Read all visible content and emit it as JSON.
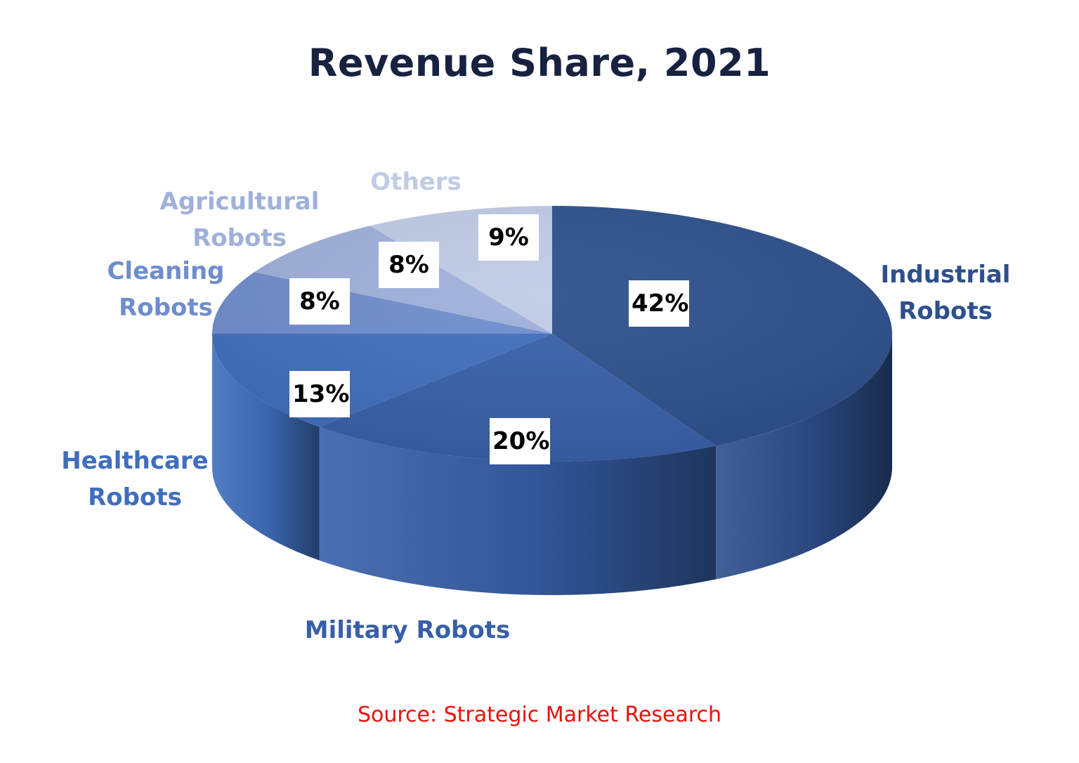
{
  "chart_data": {
    "type": "pie",
    "title": "Revenue Share, 2021",
    "categories": [
      "Industrial Robots",
      "Military Robots",
      "Healthcare Robots",
      "Cleaning Robots",
      "Agricultural Robots",
      "Others"
    ],
    "values": [
      42,
      20,
      13,
      8,
      8,
      9
    ],
    "value_labels": [
      "42%",
      "20%",
      "13%",
      "8%",
      "8%",
      "9%"
    ],
    "category_label_lines": [
      [
        "Industrial",
        "Robots"
      ],
      [
        "Military Robots"
      ],
      [
        "Healthcare",
        "Robots"
      ],
      [
        "Cleaning",
        "Robots"
      ],
      [
        "Agricultural",
        "Robots"
      ],
      [
        "Others"
      ]
    ],
    "colors": [
      "#2d4f8c",
      "#375fa9",
      "#3f6ebe",
      "#6f8dcd",
      "#9fb0db",
      "#c0cbe6"
    ],
    "label_colors": [
      "#2d4f8c",
      "#375fa9",
      "#3f6ebe",
      "#6f8dcd",
      "#9fb0db",
      "#c0cbe6"
    ],
    "source": "Source: Strategic Market Research",
    "style": "3d-pie",
    "legend": "none"
  }
}
